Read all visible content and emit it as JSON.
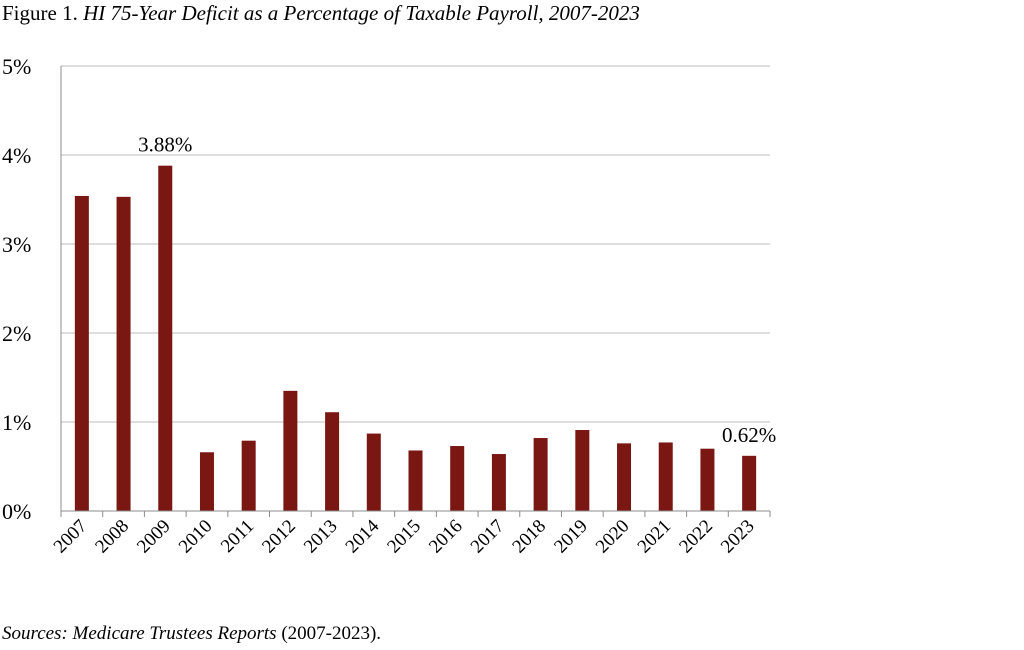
{
  "figure": {
    "label": "Figure 1.",
    "title": "HI 75-Year Deficit as a Percentage of Taxable Payroll, 2007-2023"
  },
  "source": {
    "prefix": "Sources: Medicare Trustees Reports",
    "suffix": "(2007-2023)."
  },
  "chart_data": {
    "type": "bar",
    "categories": [
      "2007",
      "2008",
      "2009",
      "2010",
      "2011",
      "2012",
      "2013",
      "2014",
      "2015",
      "2016",
      "2017",
      "2018",
      "2019",
      "2020",
      "2021",
      "2022",
      "2023"
    ],
    "values": [
      3.54,
      3.53,
      3.88,
      0.66,
      0.79,
      1.35,
      1.11,
      0.87,
      0.68,
      0.73,
      0.64,
      0.82,
      0.91,
      0.76,
      0.77,
      0.7,
      0.62
    ],
    "ylim": [
      0,
      5
    ],
    "yticks": [
      0,
      1,
      2,
      3,
      4,
      5
    ],
    "ytick_labels": [
      "0%",
      "1%",
      "2%",
      "3%",
      "4%",
      "5%"
    ],
    "annotations": [
      {
        "category": "2009",
        "text": "3.88%"
      },
      {
        "category": "2023",
        "text": "0.62%"
      }
    ],
    "bar_color": "#7a1712",
    "grid": true,
    "xlabel": "",
    "ylabel": ""
  }
}
